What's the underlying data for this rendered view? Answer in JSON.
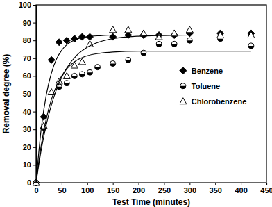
{
  "chart_data": {
    "type": "scatter",
    "x_label": "Test Time (minutes)",
    "y_label": "Removal degree (%)",
    "xlim": [
      0,
      450
    ],
    "xticks": [
      0,
      50,
      100,
      150,
      200,
      250,
      300,
      350,
      400,
      450
    ],
    "ylim": [
      0,
      100
    ],
    "yticks": [
      0,
      10,
      20,
      30,
      40,
      50,
      60,
      70,
      80,
      90,
      100
    ],
    "legend": "right",
    "grid": false,
    "series": [
      {
        "name": "Benzene",
        "type": "scatter",
        "marker": "diamond",
        "color": "#000000",
        "x": [
          0,
          15,
          30,
          45,
          60,
          75,
          90,
          105,
          150,
          180,
          210,
          240,
          270,
          300,
          360,
          420
        ],
        "values": [
          0,
          37,
          69,
          79,
          80,
          81,
          82,
          82,
          82,
          83,
          83,
          83,
          83,
          84,
          84,
          84
        ]
      },
      {
        "name": "Toluene",
        "type": "scatter",
        "marker": "half-circle",
        "color": "#000000",
        "x": [
          0,
          15,
          45,
          60,
          75,
          90,
          105,
          120,
          150,
          180,
          210,
          240,
          270,
          300,
          360,
          420
        ],
        "values": [
          0,
          31,
          54,
          56,
          60,
          61,
          62,
          65,
          67,
          69,
          73,
          78,
          78,
          80,
          81,
          77
        ]
      },
      {
        "name": "Chlorobenzene",
        "type": "scatter",
        "marker": "open-triangle",
        "color": "#000000",
        "x": [
          0,
          15,
          30,
          45,
          60,
          75,
          90,
          105,
          150,
          180,
          210,
          240,
          270,
          300,
          360,
          420
        ],
        "values": [
          0,
          32,
          51,
          57,
          60,
          66,
          68,
          78,
          86,
          86,
          84,
          82,
          84,
          86,
          83,
          83
        ]
      },
      {
        "type": "line",
        "line_style": "solid",
        "color": "#000000",
        "x": [
          0,
          10,
          20,
          30,
          40,
          50,
          60,
          80,
          100,
          125,
          150,
          200,
          250,
          300,
          350,
          420
        ],
        "values": [
          0,
          30.3,
          49.5,
          61.7,
          69.6,
          74.5,
          77.6,
          80.8,
          82.1,
          82.7,
          83,
          83,
          83,
          83,
          83,
          83
        ]
      },
      {
        "type": "line",
        "line_style": "solid",
        "color": "#000000",
        "x": [
          0,
          10,
          20,
          30,
          40,
          50,
          60,
          80,
          100,
          125,
          150,
          200,
          250,
          300,
          350,
          420
        ],
        "values": [
          0,
          21,
          36,
          46.8,
          54.5,
          60,
          64,
          68.9,
          71.4,
          72.8,
          73.5,
          74,
          74,
          74,
          74,
          74
        ]
      },
      {
        "type": "line",
        "line_style": "solid",
        "color": "#000000",
        "x": [
          0,
          10,
          20,
          30,
          40,
          50,
          60,
          80,
          100,
          125,
          150,
          200,
          250,
          300,
          350,
          420
        ],
        "values": [
          0,
          18.4,
          32.7,
          43.8,
          52.5,
          59.2,
          64.5,
          71.8,
          76.2,
          79.3,
          81,
          82.4,
          82.8,
          83,
          83,
          83
        ]
      }
    ]
  }
}
